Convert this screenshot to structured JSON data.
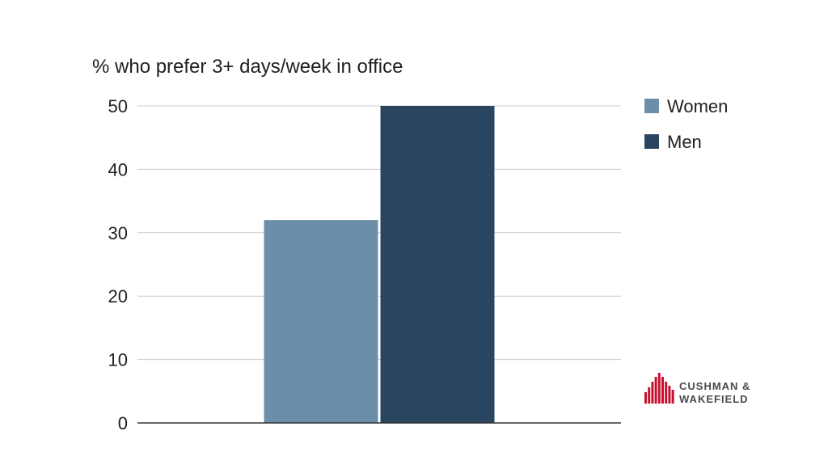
{
  "chart_data": {
    "type": "bar",
    "title": "% who prefer 3+ days/week in office",
    "categories": [
      ""
    ],
    "series": [
      {
        "name": "Women",
        "values": [
          32
        ],
        "color": "#6b8fab"
      },
      {
        "name": "Men",
        "values": [
          50
        ],
        "color": "#294560"
      }
    ],
    "xlabel": "",
    "ylabel": "",
    "ylim": [
      0,
      50
    ],
    "yticks": [
      "0",
      "10",
      "20",
      "30",
      "40",
      "50"
    ],
    "grid": true,
    "legend_position": "right"
  },
  "logo": {
    "line1": "CUSHMAN &",
    "line2": "WAKEFIELD",
    "color": "#c8102e"
  }
}
